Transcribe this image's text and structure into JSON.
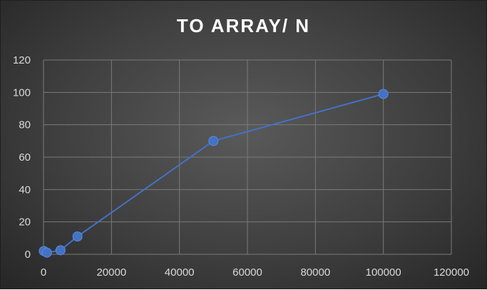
{
  "chart_data": {
    "type": "scatter",
    "title": "TO ARRAY/ N",
    "xlabel": "",
    "ylabel": "",
    "xlim": [
      0,
      120000
    ],
    "ylim": [
      0,
      120
    ],
    "x_ticks": [
      0,
      20000,
      40000,
      60000,
      80000,
      100000,
      120000
    ],
    "y_ticks": [
      0,
      20,
      40,
      60,
      80,
      100,
      120
    ],
    "grid": true,
    "legend": "none",
    "series": [
      {
        "color": "#4472c4",
        "lines": true,
        "markers": true,
        "points": [
          {
            "x": 100,
            "y": 2
          },
          {
            "x": 1000,
            "y": 1
          },
          {
            "x": 5000,
            "y": 2.5
          },
          {
            "x": 10000,
            "y": 11
          },
          {
            "x": 50000,
            "y": 70
          },
          {
            "x": 100000,
            "y": 99
          }
        ]
      }
    ]
  }
}
